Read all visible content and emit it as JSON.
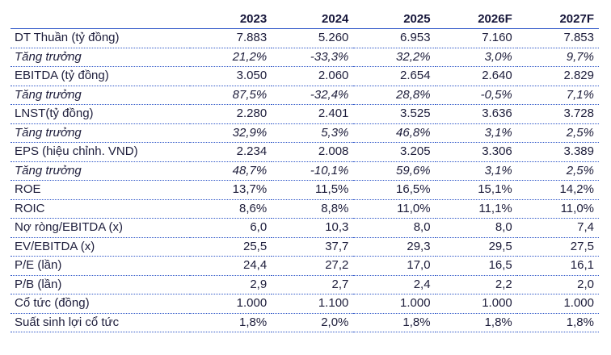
{
  "table": {
    "corner": "",
    "years": [
      "2023",
      "2024",
      "2025",
      "2026F",
      "2027F"
    ],
    "rows": [
      {
        "label": "DT Thuần (tỷ đồng)",
        "italic": false,
        "values": [
          "7.883",
          "5.260",
          "6.953",
          "7.160",
          "7.853"
        ]
      },
      {
        "label": "Tăng trưởng",
        "italic": true,
        "values": [
          "21,2%",
          "-33,3%",
          "32,2%",
          "3,0%",
          "9,7%"
        ]
      },
      {
        "label": "EBITDA (tỷ đồng)",
        "italic": false,
        "values": [
          "3.050",
          "2.060",
          "2.654",
          "2.640",
          "2.829"
        ]
      },
      {
        "label": "Tăng trưởng",
        "italic": true,
        "values": [
          "87,5%",
          "-32,4%",
          "28,8%",
          "-0,5%",
          "7,1%"
        ]
      },
      {
        "label": "LNST(tỷ đồng)",
        "italic": false,
        "values": [
          "2.280",
          "2.401",
          "3.525",
          "3.636",
          "3.728"
        ]
      },
      {
        "label": "Tăng trưởng",
        "italic": true,
        "values": [
          "32,9%",
          "5,3%",
          "46,8%",
          "3,1%",
          "2,5%"
        ]
      },
      {
        "label": "EPS (hiệu chỉnh. VND)",
        "italic": false,
        "values": [
          "2.234",
          "2.008",
          "3.205",
          "3.306",
          "3.389"
        ]
      },
      {
        "label": "Tăng trưởng",
        "italic": true,
        "values": [
          "48,7%",
          "-10,1%",
          "59,6%",
          "3,1%",
          "2,5%"
        ]
      },
      {
        "label": "ROE",
        "italic": false,
        "values": [
          "13,7%",
          "11,5%",
          "16,5%",
          "15,1%",
          "14,2%"
        ]
      },
      {
        "label": "ROIC",
        "italic": false,
        "values": [
          "8,6%",
          "8,8%",
          "11,0%",
          "11,1%",
          "11,0%"
        ]
      },
      {
        "label": "Nợ ròng/EBITDA (x)",
        "italic": false,
        "values": [
          "6,0",
          "10,3",
          "8,0",
          "8,0",
          "7,4"
        ]
      },
      {
        "label": "EV/EBITDA (x)",
        "italic": false,
        "values": [
          "25,5",
          "37,7",
          "29,3",
          "29,5",
          "27,5"
        ]
      },
      {
        "label": "P/E (lần)",
        "italic": false,
        "values": [
          "24,4",
          "27,2",
          "17,0",
          "16,5",
          "16,1"
        ]
      },
      {
        "label": "P/B (lần)",
        "italic": false,
        "values": [
          "2,9",
          "2,7",
          "2,4",
          "2,2",
          "2,0"
        ]
      },
      {
        "label": "Cổ tức (đồng)",
        "italic": false,
        "values": [
          "1.000",
          "1.100",
          "1.000",
          "1.000",
          "1.000"
        ]
      },
      {
        "label": "Suất sinh lợi cổ tức",
        "italic": false,
        "values": [
          "1,8%",
          "2,0%",
          "1,8%",
          "1,8%",
          "1,8%"
        ]
      }
    ]
  },
  "colors": {
    "text": "#1d1d3b",
    "rule": "#2e56c8",
    "background": "#ffffff"
  }
}
